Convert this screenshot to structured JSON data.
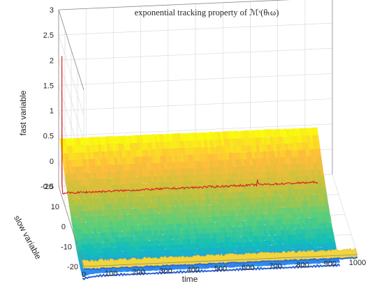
{
  "chart_data": {
    "type": "surface",
    "title": "exponential tracking property of ℳˢ(θₜω)",
    "xlabel": "time",
    "ylabel": "slow variable",
    "zlabel": "fast variable",
    "xlim": [
      0,
      1000
    ],
    "ylim": [
      -20,
      20
    ],
    "zlim": [
      -0.5,
      3
    ],
    "x_ticks": [
      "0",
      "100",
      "200",
      "300",
      "400",
      "500",
      "600",
      "700",
      "800",
      "900",
      "1000"
    ],
    "y_ticks": [
      "-20",
      "-10",
      "0",
      "10",
      "20"
    ],
    "z_ticks": [
      "-0.5",
      "0",
      "0.5",
      "1",
      "1.5",
      "2",
      "2.5",
      "3"
    ],
    "grid": true,
    "colormap": "parula",
    "surface": {
      "description_values": {
        "t_range": [
          0,
          940
        ],
        "slow_range": [
          -18,
          18
        ],
        "fast_at_slow_max": 0.52,
        "fast_at_slow_min": -0.72,
        "fast_min_near_t0": -0.78
      }
    },
    "trajectory": {
      "color": "#d62728",
      "spike_time": 5,
      "spike_peak": 2.2,
      "spike_base": -0.35,
      "level": -0.52,
      "t_end": 940,
      "small_spike_time": 720,
      "small_spike_peak": -0.42
    },
    "second_sheet": {
      "slow_value": 18,
      "fast_value": -0.6,
      "t_range": [
        0,
        1000
      ]
    }
  }
}
